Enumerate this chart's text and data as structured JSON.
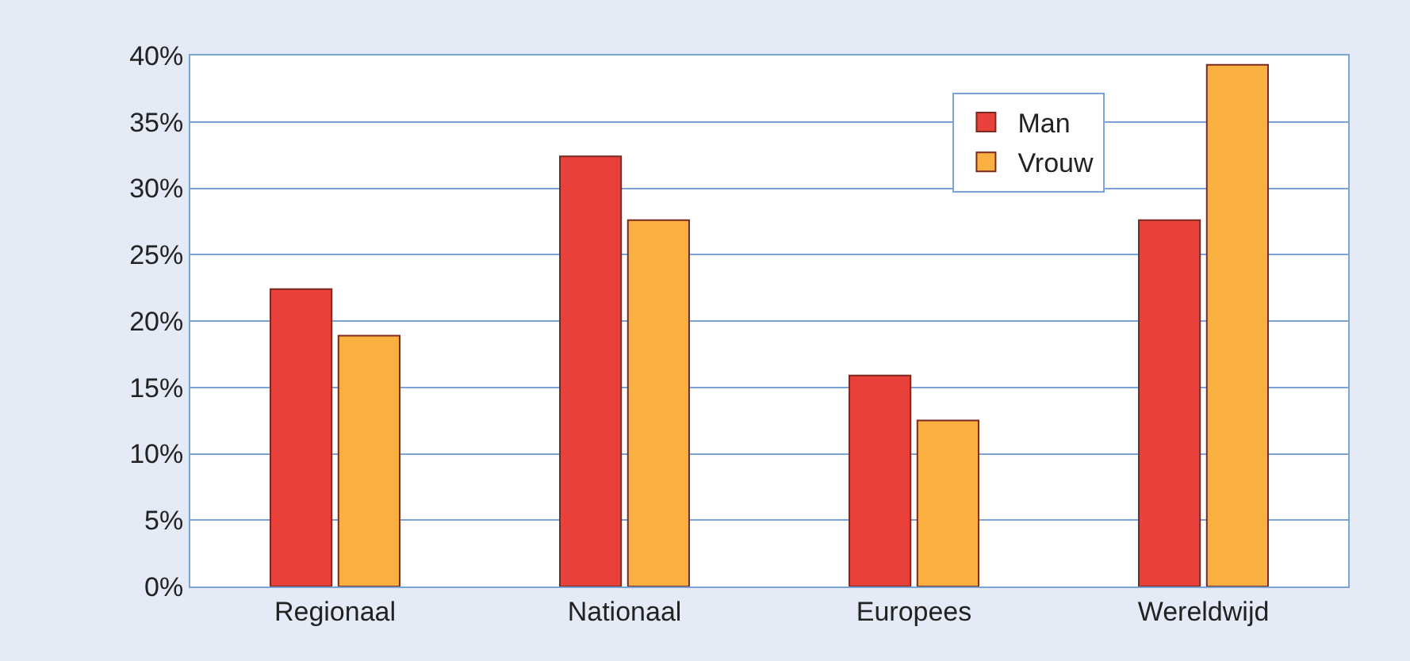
{
  "chart_data": {
    "type": "bar",
    "categories": [
      "Regionaal",
      "Nationaal",
      "Europees",
      "Wereldwijd"
    ],
    "series": [
      {
        "name": "Man",
        "color": "#e8403a",
        "values": [
          22.4,
          32.4,
          15.9,
          27.6
        ]
      },
      {
        "name": "Vrouw",
        "color": "#f9b040",
        "values": [
          18.9,
          27.6,
          12.5,
          39.3
        ]
      }
    ],
    "ylim": [
      0,
      40
    ],
    "yticks": [
      {
        "value": 0,
        "label": "0%"
      },
      {
        "value": 5,
        "label": "5%"
      },
      {
        "value": 10,
        "label": "10%"
      },
      {
        "value": 15,
        "label": "15%"
      },
      {
        "value": 20,
        "label": "20%"
      },
      {
        "value": 25,
        "label": "25%"
      },
      {
        "value": 30,
        "label": "30%"
      },
      {
        "value": 35,
        "label": "35%"
      },
      {
        "value": 40,
        "label": "40%"
      }
    ],
    "grid": "y",
    "legend": "top right"
  }
}
